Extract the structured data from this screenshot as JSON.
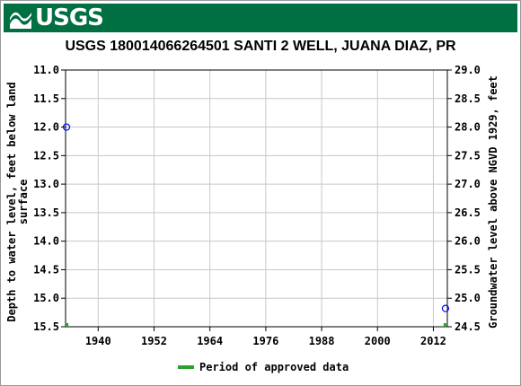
{
  "header": {
    "logo_text": "USGS",
    "brand_color": "#006f41",
    "logo_icon": "usgs-wave-icon"
  },
  "chart_data": {
    "type": "scatter",
    "title": "USGS 180014066264501 SANTI 2 WELL, JUANA DIAZ, PR",
    "ylabel": "Depth to water level, feet below land surface",
    "ylabel_lines": [
      "Depth to water level, feet below land",
      "surface"
    ],
    "y2label": "Groundwater level above NGVD 1929, feet",
    "ylim": [
      11.0,
      15.5
    ],
    "y_inverted": true,
    "y_ticks": [
      "11.0",
      "11.5",
      "12.0",
      "12.5",
      "13.0",
      "13.5",
      "14.0",
      "14.5",
      "15.0",
      "15.5"
    ],
    "y2lim": [
      24.5,
      29.0
    ],
    "y2_ticks": [
      "29.0",
      "28.5",
      "28.0",
      "27.5",
      "27.0",
      "26.5",
      "26.0",
      "25.5",
      "25.0",
      "24.5"
    ],
    "xlim": [
      1933,
      2015
    ],
    "x_ticks": [
      "1940",
      "1952",
      "1964",
      "1976",
      "1988",
      "2000",
      "2012"
    ],
    "grid": true,
    "series": [
      {
        "color": "#0000ff",
        "marker": "circle-open",
        "points": [
          {
            "x": 1933.2,
            "y": 12.0
          },
          {
            "x": 2014.6,
            "y": 15.18
          }
        ]
      }
    ],
    "approved_periods": [
      {
        "start": 1933.0,
        "end": 1933.6
      },
      {
        "start": 2014.2,
        "end": 2014.8
      }
    ],
    "approved_color": "#2ca02c",
    "legend": {
      "placement": "bottom-center",
      "items": [
        {
          "label": "Period of approved data",
          "color": "#2ca02c"
        }
      ]
    }
  }
}
